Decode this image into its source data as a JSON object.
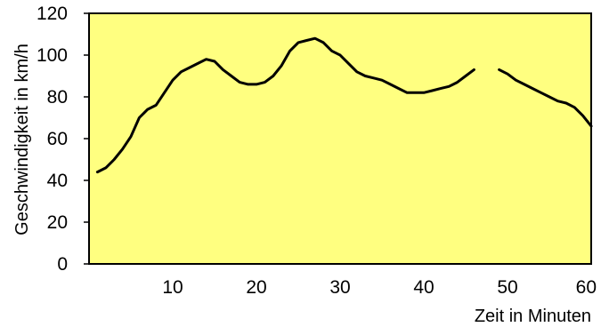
{
  "chart_data": {
    "type": "line",
    "title": "",
    "xlabel": "Zeit in Minuten",
    "ylabel": "Geschwindigkeit in km/h",
    "xlim": [
      0,
      60
    ],
    "ylim": [
      0,
      120
    ],
    "x_ticks": [
      10,
      20,
      30,
      40,
      50,
      60
    ],
    "y_ticks": [
      0,
      20,
      40,
      60,
      80,
      100,
      120
    ],
    "grid": false,
    "legend": "none",
    "colors": {
      "plot_background": "#ffff80",
      "line": "#000000",
      "frame": "#000000"
    },
    "series": [
      {
        "segments": [
          [
            [
              1,
              44
            ],
            [
              2,
              46
            ],
            [
              3,
              50
            ],
            [
              4,
              55
            ],
            [
              5,
              61
            ],
            [
              6,
              70
            ],
            [
              7,
              74
            ],
            [
              8,
              76
            ],
            [
              9,
              82
            ],
            [
              10,
              88
            ],
            [
              11,
              92
            ],
            [
              12,
              94
            ],
            [
              13,
              96
            ],
            [
              14,
              98
            ],
            [
              15,
              97
            ],
            [
              16,
              93
            ],
            [
              17,
              90
            ],
            [
              18,
              87
            ],
            [
              19,
              86
            ],
            [
              20,
              86
            ],
            [
              21,
              87
            ],
            [
              22,
              90
            ],
            [
              23,
              95
            ],
            [
              24,
              102
            ],
            [
              25,
              106
            ],
            [
              26,
              107
            ],
            [
              27,
              108
            ],
            [
              28,
              106
            ],
            [
              29,
              102
            ],
            [
              30,
              100
            ],
            [
              31,
              96
            ],
            [
              32,
              92
            ],
            [
              33,
              90
            ],
            [
              34,
              89
            ],
            [
              35,
              88
            ],
            [
              36,
              86
            ],
            [
              37,
              84
            ],
            [
              38,
              82
            ],
            [
              39,
              82
            ],
            [
              40,
              82
            ],
            [
              41,
              83
            ],
            [
              42,
              84
            ],
            [
              43,
              85
            ],
            [
              44,
              87
            ],
            [
              45,
              90
            ],
            [
              46,
              93
            ]
          ],
          [
            [
              49,
              93
            ],
            [
              50,
              91
            ],
            [
              51,
              88
            ],
            [
              52,
              86
            ],
            [
              53,
              84
            ],
            [
              54,
              82
            ],
            [
              55,
              80
            ],
            [
              56,
              78
            ],
            [
              57,
              77
            ],
            [
              58,
              75
            ],
            [
              59,
              71
            ],
            [
              60,
              66
            ]
          ]
        ]
      }
    ]
  }
}
